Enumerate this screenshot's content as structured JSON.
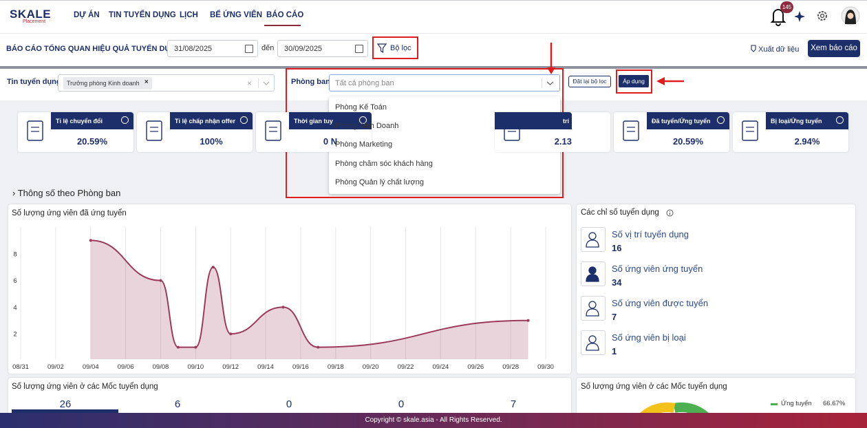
{
  "nav": {
    "logo": "SKALE",
    "logo_sub": "Placement",
    "menu": [
      "DỰ ÁN",
      "TIN TUYỂN DỤNG",
      "LỊCH",
      "BỂ ỨNG VIÊN",
      "BÁO CÁO"
    ],
    "notifications": "145"
  },
  "toolbar": {
    "title": "BÁO CÁO TỔNG QUAN HIỆU QUẢ TUYỂN DỤNG",
    "date_from": "31/08/2025",
    "to_label": "đến",
    "date_to": "30/09/2025",
    "filter_button": "Bộ lọc",
    "export": "Xuất dữ liệu",
    "view": "Xem báo cáo"
  },
  "filters": {
    "job_label": "Tin tuyển dụng",
    "job_tag": "Trưởng phòng Kinh doanh",
    "dept_label": "Phòng ban",
    "dept_placeholder": "Tất cả phòng ban",
    "reset": "Đặt lại bộ lọc",
    "apply": "Áp dụng"
  },
  "dropdown": {
    "options": [
      "Phòng Kế Toán",
      "Phòng Kinh Doanh",
      "Phòng Marketing",
      "Phòng chăm sóc khách hàng",
      "Phòng Quản lý chất lượng"
    ]
  },
  "kpis": [
    {
      "label": "Tỉ lệ chuyển đổi",
      "value": "20.59%"
    },
    {
      "label": "Tỉ lệ chấp nhận offer",
      "value": "100%"
    },
    {
      "label": "Thời gian tuy",
      "value": "0 N"
    },
    {
      "label": "trí",
      "value": "2.13"
    },
    {
      "label": "Đã tuyển/Ứng tuyển",
      "value": "20.59%"
    },
    {
      "label": "Bị loại/Ứng tuyển",
      "value": "2.94%"
    }
  ],
  "section_title": "Thông số theo Phòng ban",
  "chart_data": {
    "type": "line",
    "title": "Số lượng ứng viên đã ứng tuyển",
    "x": [
      "09/04",
      "09/08",
      "09/09",
      "09/10",
      "09/11",
      "09/12",
      "09/15",
      "09/17",
      "09/29"
    ],
    "values": [
      9,
      6,
      1,
      1,
      7,
      2,
      4,
      1,
      3
    ],
    "xlim": [
      "08/31",
      "09/30"
    ],
    "xticks": [
      "08/31",
      "09/02",
      "09/04",
      "09/06",
      "09/08",
      "09/10",
      "09/12",
      "09/14",
      "09/16",
      "09/18",
      "09/20",
      "09/22",
      "09/24",
      "09/26",
      "09/28",
      "09/30"
    ],
    "ylim": [
      0,
      10
    ],
    "yticks": [
      2,
      4,
      6,
      8
    ],
    "grid": true,
    "color": "#9b3a5c"
  },
  "indicators": {
    "title": "Các chỉ số tuyển dụng",
    "items": [
      {
        "label": "Số vị trí tuyển dụng",
        "value": "16"
      },
      {
        "label": "Số ứng viên ứng tuyển",
        "value": "34"
      },
      {
        "label": "Số ứng viên được tuyển",
        "value": "7"
      },
      {
        "label": "Số ứng viên bị loại",
        "value": "1"
      }
    ]
  },
  "milestones": {
    "title": "Số lượng ứng viên ở các Mốc tuyển dụng",
    "values": [
      "26",
      "6",
      "0",
      "0",
      "7"
    ]
  },
  "pie": {
    "title": "Số lượng ứng viên ở các Mốc tuyển dụng",
    "legend": [
      {
        "name": "Ứng tuyển",
        "value": "66.67%"
      }
    ]
  },
  "footer": "Copyright © skale.asia - All Rights Reserved."
}
